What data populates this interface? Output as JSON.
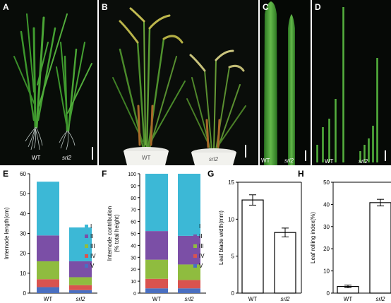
{
  "photos": [
    {
      "panel": "A",
      "labels": [
        "WT",
        "srl2"
      ]
    },
    {
      "panel": "B",
      "labels": [
        "WT",
        "srl2"
      ]
    },
    {
      "panel": "C",
      "labels": [
        "WT",
        "srl2"
      ]
    },
    {
      "panel": "D",
      "labels": [
        "WT",
        "srl2"
      ]
    }
  ],
  "chart_data": [
    {
      "panel": "E",
      "type": "bar",
      "stacked": true,
      "ylabel": "Internode length(cm)",
      "ylim": [
        0,
        60
      ],
      "yticks": [
        0,
        10,
        20,
        30,
        40,
        50,
        60
      ],
      "categories": [
        "WT",
        "srl2"
      ],
      "series": [
        {
          "name": "V",
          "color": "#4a6fc1",
          "values": [
            3,
            1.5
          ]
        },
        {
          "name": "IV",
          "color": "#d9534f",
          "values": [
            4,
            2.5
          ]
        },
        {
          "name": "III",
          "color": "#8fbc3f",
          "values": [
            9,
            4
          ]
        },
        {
          "name": "II",
          "color": "#7b4fa6",
          "values": [
            13,
            8
          ]
        },
        {
          "name": "I",
          "color": "#3cb8d6",
          "values": [
            27,
            17
          ]
        }
      ],
      "legend": "right"
    },
    {
      "panel": "F",
      "type": "bar",
      "stacked": true,
      "ylabel": "Internode contribution (% total height)",
      "ylim": [
        0,
        100
      ],
      "yticks": [
        0,
        10,
        20,
        30,
        40,
        50,
        60,
        70,
        80,
        90,
        100
      ],
      "categories": [
        "WT",
        "srl2"
      ],
      "series": [
        {
          "name": "V",
          "color": "#4a6fc1",
          "values": [
            4,
            4
          ]
        },
        {
          "name": "IV",
          "color": "#d9534f",
          "values": [
            8,
            7
          ]
        },
        {
          "name": "III",
          "color": "#8fbc3f",
          "values": [
            16,
            13
          ]
        },
        {
          "name": "II",
          "color": "#7b4fa6",
          "values": [
            24,
            24
          ]
        },
        {
          "name": "I",
          "color": "#3cb8d6",
          "values": [
            48,
            52
          ]
        }
      ],
      "legend": "right"
    },
    {
      "panel": "G",
      "type": "bar",
      "ylabel": "Leaf blade width(mm)",
      "ylim": [
        0,
        15
      ],
      "yticks": [
        0,
        5,
        10,
        15
      ],
      "categories": [
        "WT",
        "srl2"
      ],
      "values": [
        12.6,
        8.2
      ],
      "errors": [
        0.7,
        0.6
      ]
    },
    {
      "panel": "H",
      "type": "bar",
      "ylabel": "Leaf rolling index(%)",
      "ylim": [
        0,
        50
      ],
      "yticks": [
        0,
        10,
        20,
        30,
        40,
        50
      ],
      "categories": [
        "WT",
        "srl2"
      ],
      "values": [
        3,
        40.8
      ],
      "errors": [
        0.6,
        1.5
      ]
    }
  ]
}
